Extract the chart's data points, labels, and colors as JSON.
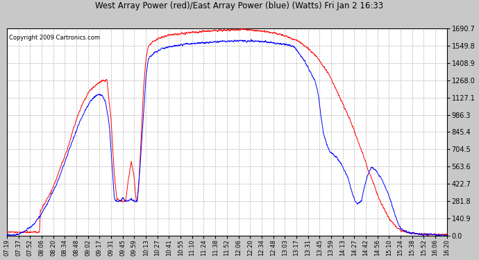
{
  "title": "West Array Power (red)/East Array Power (blue) (Watts) Fri Jan 2 16:33",
  "copyright": "Copyright 2009 Cartronics.com",
  "background_color": "#c8c8c8",
  "plot_bg_color": "#ffffff",
  "grid_color": "#aaaaaa",
  "red_color": "#ff0000",
  "blue_color": "#0000ff",
  "ylim": [
    0.0,
    1690.7
  ],
  "yticks": [
    0.0,
    140.9,
    281.8,
    422.7,
    563.6,
    704.5,
    845.4,
    986.3,
    1127.1,
    1268.0,
    1408.9,
    1549.8,
    1690.7
  ],
  "xtick_labels": [
    "07:19",
    "07:37",
    "07:52",
    "08:06",
    "08:20",
    "08:34",
    "08:48",
    "09:02",
    "09:17",
    "09:31",
    "09:45",
    "09:59",
    "10:13",
    "10:27",
    "10:41",
    "10:55",
    "11:10",
    "11:24",
    "11:38",
    "11:52",
    "12:06",
    "12:20",
    "12:34",
    "12:48",
    "13:03",
    "13:17",
    "13:31",
    "13:45",
    "13:59",
    "14:13",
    "14:27",
    "14:42",
    "14:56",
    "15:10",
    "15:24",
    "15:38",
    "15:52",
    "16:06",
    "16:20"
  ]
}
